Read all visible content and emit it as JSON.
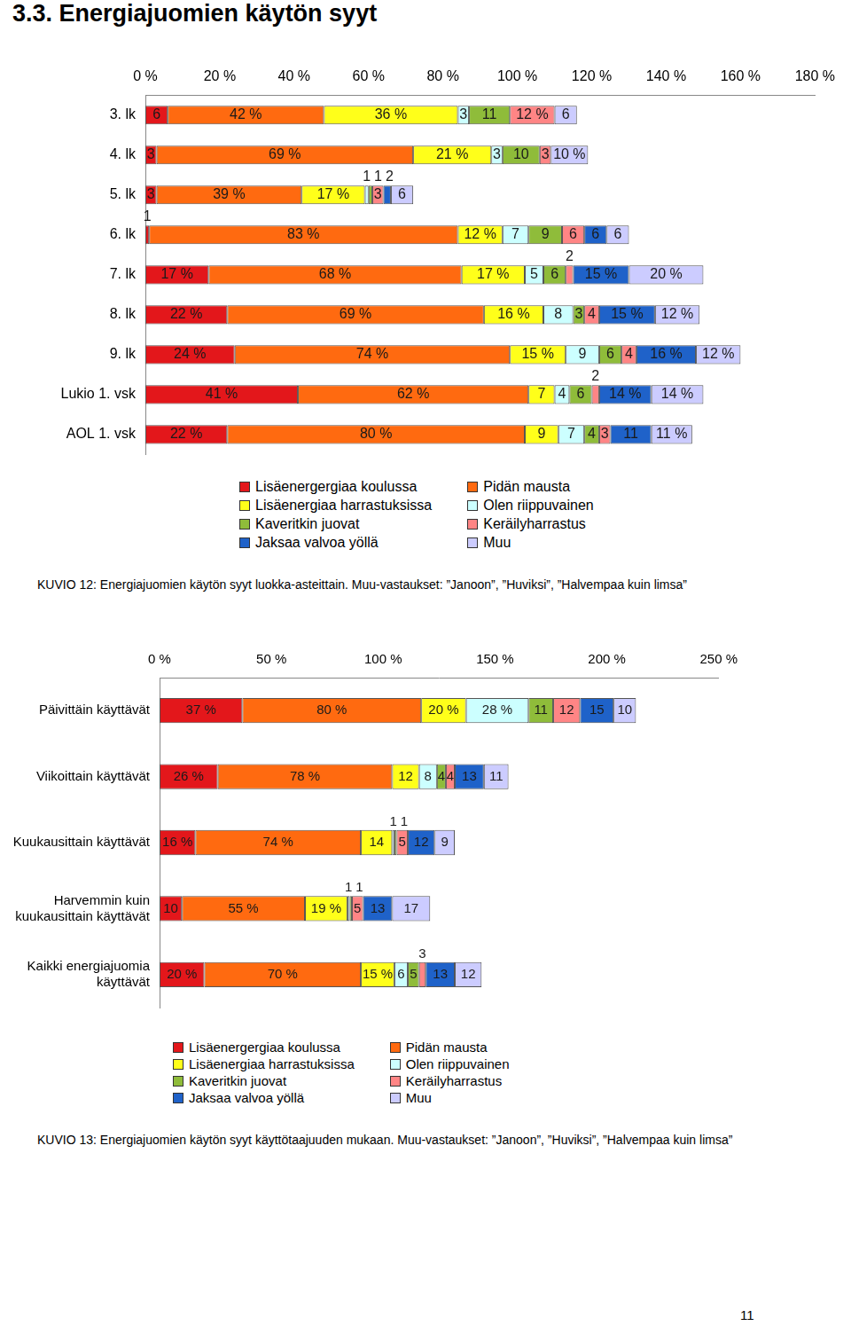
{
  "heading": "3.3. Energiajuomien käytön syyt",
  "page_number": "11",
  "chart_data": [
    {
      "type": "bar",
      "orientation": "horizontal",
      "stacked": true,
      "data_labels": true,
      "grid": false,
      "legend": "bottom",
      "title": "KUVIO 12: Energiajuomien käytön syyt luokka-asteittain. Muu-vastaukset: ”Janoon”, ”Huviksi”, ”Halvempaa kuin limsa”",
      "categories": [
        "3. lk",
        "4. lk",
        "5. lk",
        "6. lk",
        "7. lk",
        "8. lk",
        "9. lk",
        "Lukio 1. vsk",
        "AOL 1. vsk"
      ],
      "xlim": [
        0,
        180
      ],
      "xticks": [
        {
          "value": 0,
          "label": "0 %"
        },
        {
          "value": 20,
          "label": "20 %"
        },
        {
          "value": 40,
          "label": "40 %"
        },
        {
          "value": 60,
          "label": "60 %"
        },
        {
          "value": 80,
          "label": "80 %"
        },
        {
          "value": 100,
          "label": "100 %"
        },
        {
          "value": 120,
          "label": "120 %"
        },
        {
          "value": 140,
          "label": "140 %"
        },
        {
          "value": 160,
          "label": "160 %"
        },
        {
          "value": 180,
          "label": "180 %"
        }
      ],
      "series": [
        {
          "name": "Lisäenergergiaa koulussa",
          "color": "#e3171b",
          "values": [
            6,
            3,
            3,
            1,
            17,
            22,
            24,
            41,
            22
          ],
          "value_labels": [
            "6",
            "3",
            "3",
            "1",
            "17 %",
            "22 %",
            "24 %",
            "41 %",
            "22 %"
          ]
        },
        {
          "name": "Pidän mausta",
          "color": "#ff6a10",
          "values": [
            42,
            69,
            39,
            83,
            68,
            69,
            74,
            62,
            80
          ],
          "value_labels": [
            "42 %",
            "69 %",
            "39 %",
            "83 %",
            "68 %",
            "69 %",
            "74 %",
            "62 %",
            "80 %"
          ]
        },
        {
          "name": "Lisäenergiaa harrastuksissa",
          "color": "#ffff1a",
          "values": [
            36,
            21,
            17,
            12,
            17,
            16,
            15,
            7,
            9
          ],
          "value_labels": [
            "36 %",
            "21 %",
            "17 %",
            "12 %",
            "17 %",
            "16 %",
            "15 %",
            "7",
            "9"
          ]
        },
        {
          "name": "Olen riippuvainen",
          "color": "#ccffff",
          "values": [
            3,
            3,
            1,
            7,
            5,
            8,
            9,
            4,
            7
          ],
          "value_labels": [
            "3",
            "3",
            "1",
            "7",
            "5",
            "8",
            "9",
            "4",
            "7"
          ]
        },
        {
          "name": "Kaveritkin juovat",
          "color": "#8fbc3a",
          "values": [
            11,
            10,
            1,
            9,
            6,
            3,
            6,
            6,
            4
          ],
          "value_labels": [
            "11",
            "10",
            "1",
            "9",
            "6",
            "3",
            "6",
            "6",
            "4"
          ]
        },
        {
          "name": "Keräilyharrastus",
          "color": "#ff8585",
          "values": [
            12,
            3,
            3,
            6,
            2,
            4,
            4,
            2,
            3
          ],
          "value_labels": [
            "12 %",
            "3",
            "3",
            "6",
            "2",
            "4",
            "4",
            "2",
            "3"
          ]
        },
        {
          "name": "Jaksaa valvoa yöllä",
          "color": "#1f62c9",
          "values": [
            null,
            null,
            2,
            6,
            15,
            15,
            16,
            14,
            11
          ],
          "value_labels": [
            null,
            null,
            "2",
            "6",
            "15 %",
            "15 %",
            "16 %",
            "14 %",
            "11"
          ]
        },
        {
          "name": "Muu",
          "color": "#ccccff",
          "values": [
            6,
            10,
            6,
            6,
            20,
            12,
            12,
            14,
            11
          ],
          "value_labels": [
            "6",
            "10 %",
            "6",
            "6",
            "20 %",
            "12 %",
            "12 %",
            "14 %",
            "11 %"
          ]
        }
      ]
    },
    {
      "type": "bar",
      "orientation": "horizontal",
      "stacked": true,
      "data_labels": true,
      "grid": false,
      "legend": "bottom",
      "title": "KUVIO 13: Energiajuomien käytön syyt käyttötaajuuden mukaan. Muu-vastaukset: ”Janoon”, ”Huviksi”, ”Halvempaa kuin limsa”",
      "categories": [
        "Päivittäin käyttävät",
        "Viikoittain käyttävät",
        "Kuukausittain käyttävät",
        "Harvemmin kuin kuukausittain käyttävät",
        "Kaikki energiajuomia käyttävät"
      ],
      "xlim": [
        0,
        250
      ],
      "xticks": [
        {
          "value": 0,
          "label": "0 %"
        },
        {
          "value": 50,
          "label": "50 %"
        },
        {
          "value": 100,
          "label": "100 %"
        },
        {
          "value": 150,
          "label": "150 %"
        },
        {
          "value": 200,
          "label": "200 %"
        },
        {
          "value": 250,
          "label": "250 %"
        }
      ],
      "series": [
        {
          "name": "Lisäenergergiaa koulussa",
          "color": "#e3171b",
          "values": [
            37,
            26,
            16,
            10,
            20
          ],
          "value_labels": [
            "37 %",
            "26 %",
            "16 %",
            "10",
            "20 %"
          ]
        },
        {
          "name": "Pidän mausta",
          "color": "#ff6a10",
          "values": [
            80,
            78,
            74,
            55,
            70
          ],
          "value_labels": [
            "80 %",
            "78 %",
            "74 %",
            "55 %",
            "70 %"
          ]
        },
        {
          "name": "Lisäenergiaa harrastuksissa",
          "color": "#ffff1a",
          "values": [
            20,
            12,
            14,
            19,
            15
          ],
          "value_labels": [
            "20 %",
            "12",
            "14",
            "19 %",
            "15 %"
          ]
        },
        {
          "name": "Olen riippuvainen",
          "color": "#ccffff",
          "values": [
            28,
            8,
            1,
            1,
            6
          ],
          "value_labels": [
            "28 %",
            "8",
            "1",
            "1",
            "6"
          ]
        },
        {
          "name": "Kaveritkin juovat",
          "color": "#8fbc3a",
          "values": [
            11,
            4,
            1,
            1,
            5
          ],
          "value_labels": [
            "11",
            "4",
            "1",
            "1",
            "5"
          ]
        },
        {
          "name": "Keräilyharrastus",
          "color": "#ff8585",
          "values": [
            12,
            4,
            5,
            5,
            3
          ],
          "value_labels": [
            "12",
            "4",
            "5",
            "5",
            "3"
          ]
        },
        {
          "name": "Jaksaa valvoa yöllä",
          "color": "#1f62c9",
          "values": [
            15,
            13,
            12,
            13,
            13
          ],
          "value_labels": [
            "15",
            "13",
            "12",
            "13",
            "13"
          ]
        },
        {
          "name": "Muu",
          "color": "#ccccff",
          "values": [
            10,
            11,
            9,
            17,
            12
          ],
          "value_labels": [
            "10",
            "11",
            "9",
            "17",
            "12"
          ]
        }
      ]
    }
  ]
}
